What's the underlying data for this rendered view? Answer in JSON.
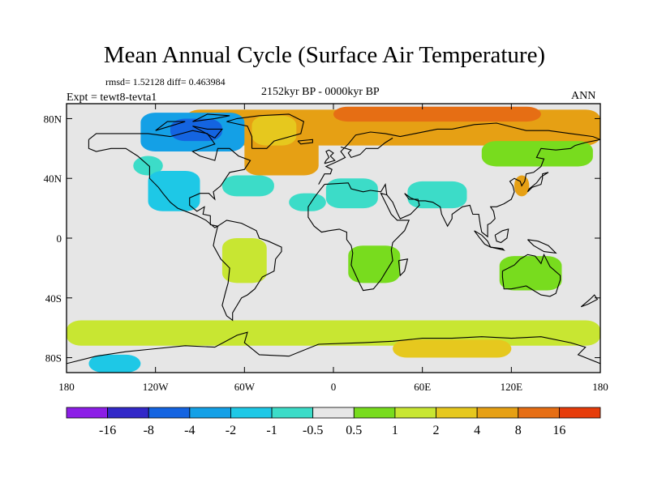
{
  "chart_data": {
    "type": "heatmap",
    "title": "Mean Annual Cycle (Surface Air Temperature)",
    "stats_text": "rmsd= 1.52128 diff= 0.463984",
    "experiment_label": "Expt = tewt8-tevta1",
    "period_label": "2152kyr BP - 0000kyr BP",
    "season_label": "ANN",
    "x_range": [
      -180,
      180
    ],
    "y_range": [
      -90,
      90
    ],
    "x_tick_values": [
      -180,
      -120,
      -60,
      0,
      60,
      120,
      180
    ],
    "x_tick_labels": [
      "180",
      "120W",
      "60W",
      "0",
      "60E",
      "120E",
      "180"
    ],
    "y_tick_values": [
      80,
      40,
      0,
      -40,
      -80
    ],
    "y_tick_labels": [
      "80N",
      "40N",
      "0",
      "40S",
      "80S"
    ],
    "colorbar": {
      "labels": [
        "-16",
        "-8",
        "-4",
        "-2",
        "-1",
        "-0.5",
        "0.5",
        "1",
        "2",
        "4",
        "8",
        "16"
      ],
      "colors": [
        "#8c1ee6",
        "#3228c8",
        "#1464e1",
        "#14a0e6",
        "#1ec8e6",
        "#3cdcc8",
        "#e6e6e6",
        "#78dc1e",
        "#c8e632",
        "#e6c81e",
        "#e6a014",
        "#e66e14",
        "#e63c0a"
      ]
    },
    "regions": [
      {
        "name": "arctic-north-atlantic-warming",
        "color": "#e6a014",
        "lon_min": -100,
        "lon_max": 180,
        "lat_min": 62,
        "lat_max": 86
      },
      {
        "name": "north-atlantic-warming",
        "color": "#e6a014",
        "lon_min": -60,
        "lon_max": -10,
        "lat_min": 42,
        "lat_max": 68
      },
      {
        "name": "arctic-ocean-strong-warming",
        "color": "#e66e14",
        "lon_min": 0,
        "lon_max": 140,
        "lat_min": 78,
        "lat_max": 88
      },
      {
        "name": "canada-cooling",
        "color": "#14a0e6",
        "lon_min": -130,
        "lon_max": -60,
        "lat_min": 58,
        "lat_max": 84
      },
      {
        "name": "canada-strong-cooling",
        "color": "#1464e1",
        "lon_min": -110,
        "lon_max": -75,
        "lat_min": 65,
        "lat_max": 80
      },
      {
        "name": "greenland-warming",
        "color": "#e6c81e",
        "lon_min": -55,
        "lon_max": -25,
        "lat_min": 62,
        "lat_max": 82
      },
      {
        "name": "north-pacific-cooling",
        "color": "#3cdcc8",
        "lon_min": -135,
        "lon_max": -115,
        "lat_min": 42,
        "lat_max": 55
      },
      {
        "name": "north-america-cooling",
        "color": "#1ec8e6",
        "lon_min": -125,
        "lon_max": -90,
        "lat_min": 18,
        "lat_max": 45
      },
      {
        "name": "north-atlantic-cooling",
        "color": "#3cdcc8",
        "lon_min": -75,
        "lon_max": -40,
        "lat_min": 28,
        "lat_max": 42
      },
      {
        "name": "mid-atlantic-cooling",
        "color": "#3cdcc8",
        "lon_min": -30,
        "lon_max": -5,
        "lat_min": 18,
        "lat_max": 30
      },
      {
        "name": "north-africa-cooling",
        "color": "#3cdcc8",
        "lon_min": -5,
        "lon_max": 30,
        "lat_min": 20,
        "lat_max": 40
      },
      {
        "name": "middle-east-cooling",
        "color": "#3cdcc8",
        "lon_min": 50,
        "lon_max": 90,
        "lat_min": 20,
        "lat_max": 38
      },
      {
        "name": "east-asia-warming",
        "color": "#e6a014",
        "lon_min": 122,
        "lon_max": 132,
        "lat_min": 28,
        "lat_max": 42
      },
      {
        "name": "siberia-warming",
        "color": "#78dc1e",
        "lon_min": 100,
        "lon_max": 175,
        "lat_min": 48,
        "lat_max": 65
      },
      {
        "name": "south-america-warming",
        "color": "#c8e632",
        "lon_min": -75,
        "lon_max": -45,
        "lat_min": -30,
        "lat_max": 0
      },
      {
        "name": "southern-africa-warming",
        "color": "#78dc1e",
        "lon_min": 10,
        "lon_max": 45,
        "lat_min": -30,
        "lat_max": -5
      },
      {
        "name": "australia-warming",
        "color": "#78dc1e",
        "lon_min": 112,
        "lon_max": 154,
        "lat_min": -35,
        "lat_max": -12
      },
      {
        "name": "southern-ocean-warming",
        "color": "#c8e632",
        "lon_min": -180,
        "lon_max": 180,
        "lat_min": -72,
        "lat_max": -55
      },
      {
        "name": "antarctica-cooling",
        "color": "#1ec8e6",
        "lon_min": -165,
        "lon_max": -130,
        "lat_min": -90,
        "lat_max": -78
      },
      {
        "name": "antarctica-warming",
        "color": "#e6c81e",
        "lon_min": 40,
        "lon_max": 120,
        "lat_min": -80,
        "lat_max": -68
      }
    ]
  }
}
